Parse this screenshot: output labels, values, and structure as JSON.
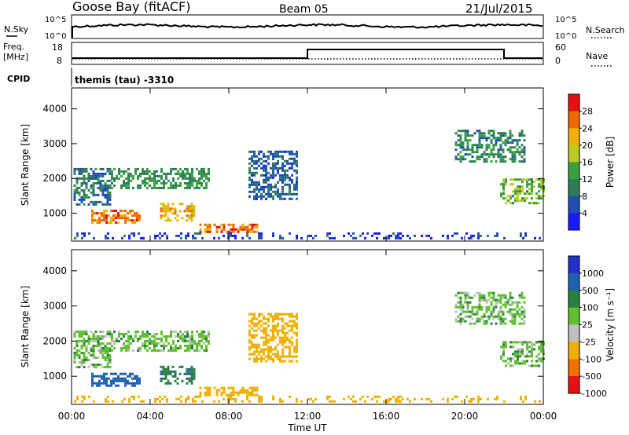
{
  "header": {
    "station": "Goose Bay (fitACF)",
    "beam": "Beam 05",
    "date": "21/Jul/2015"
  },
  "noise_panel": {
    "left_label": "N.Sky",
    "right_label": "N.Search",
    "ytick_top": "10^5",
    "ytick_bottom": "10^0"
  },
  "freq_panel": {
    "left_label_1": "Freq.",
    "left_label_2": "[MHz]",
    "left_ticks": [
      "18",
      "8"
    ],
    "right_label": "Nave",
    "right_ticks": [
      "60",
      "0"
    ]
  },
  "cpid": {
    "label": "CPID",
    "text": "themis (tau) -3310"
  },
  "xaxis": {
    "ticks": [
      "00:00",
      "04:00",
      "08:00",
      "12:00",
      "16:00",
      "20:00",
      "00:00"
    ],
    "label": "Time UT"
  },
  "chart_data": [
    {
      "type": "heatmap",
      "ylabel": "Slant Range [km]",
      "yticks": [
        "1000",
        "2000",
        "3000",
        "4000"
      ],
      "ylim": [
        200,
        4600
      ],
      "xlim": [
        0,
        24
      ],
      "colorbar_label": "Power [dB]",
      "colorbar_ticks": [
        "4",
        "8",
        "12",
        "16",
        "20",
        "24",
        "28"
      ],
      "colorbar_range": [
        0,
        32
      ],
      "colorbar_colors": [
        "#1a1aff",
        "#1f4fb0",
        "#2e7d5a",
        "#3aa040",
        "#b8cc22",
        "#f0b000",
        "#ee6a00",
        "#e81010"
      ],
      "regions": [
        {
          "t0": 0.1,
          "t1": 2.0,
          "r0": 1250,
          "r1": 2300,
          "v": 9
        },
        {
          "t0": 1.0,
          "t1": 3.5,
          "r0": 700,
          "r1": 1100,
          "v": 25
        },
        {
          "t0": 4.5,
          "t1": 6.3,
          "r0": 800,
          "r1": 1300,
          "v": 22
        },
        {
          "t0": 2.0,
          "t1": 7.0,
          "r0": 1700,
          "r1": 2300,
          "v": 12
        },
        {
          "t0": 6.5,
          "t1": 9.5,
          "r0": 450,
          "r1": 700,
          "v": 26
        },
        {
          "t0": 9.0,
          "t1": 11.5,
          "r0": 1400,
          "r1": 2800,
          "v": 7
        },
        {
          "t0": 21.8,
          "t1": 24.0,
          "r0": 1300,
          "r1": 2000,
          "v": 15
        },
        {
          "t0": 19.5,
          "t1": 23.0,
          "r0": 2500,
          "r1": 3400,
          "v": 11
        },
        {
          "t0": 0.0,
          "t1": 24.0,
          "r0": 250,
          "r1": 450,
          "v": 5
        }
      ]
    },
    {
      "type": "heatmap",
      "ylabel": "Slant Range [km]",
      "yticks": [
        "1000",
        "2000",
        "3000",
        "4000"
      ],
      "ylim": [
        200,
        4600
      ],
      "xlim": [
        0,
        24
      ],
      "colorbar_label": "Velocity [m s^-1]",
      "colorbar_ticks": [
        "1000",
        "500",
        "100",
        "25",
        "-25",
        "-100",
        "-500",
        "-1000"
      ],
      "colorbar_colors": [
        "#2030c8",
        "#2060b0",
        "#2a8040",
        "#60c030",
        "#c0c0c0",
        "#f0b000",
        "#f07000",
        "#e81010"
      ],
      "regions": [
        {
          "t0": 0.1,
          "t1": 2.0,
          "r0": 1250,
          "r1": 2300,
          "v": 0
        },
        {
          "t0": 1.0,
          "t1": 3.5,
          "r0": 700,
          "r1": 1100,
          "v": 150
        },
        {
          "t0": 4.5,
          "t1": 6.3,
          "r0": 800,
          "r1": 1300,
          "v": 80
        },
        {
          "t0": 2.0,
          "t1": 7.0,
          "r0": 1700,
          "r1": 2300,
          "v": 0
        },
        {
          "t0": 6.5,
          "t1": 9.5,
          "r0": 450,
          "r1": 700,
          "v": -300
        },
        {
          "t0": 9.0,
          "t1": 11.5,
          "r0": 1400,
          "r1": 2800,
          "v": -150
        },
        {
          "t0": 21.8,
          "t1": 24.0,
          "r0": 1300,
          "r1": 2000,
          "v": 0
        },
        {
          "t0": 19.5,
          "t1": 23.0,
          "r0": 2500,
          "r1": 3400,
          "v": 0
        },
        {
          "t0": 0.0,
          "t1": 24.0,
          "r0": 250,
          "r1": 450,
          "v": -400
        }
      ]
    }
  ]
}
